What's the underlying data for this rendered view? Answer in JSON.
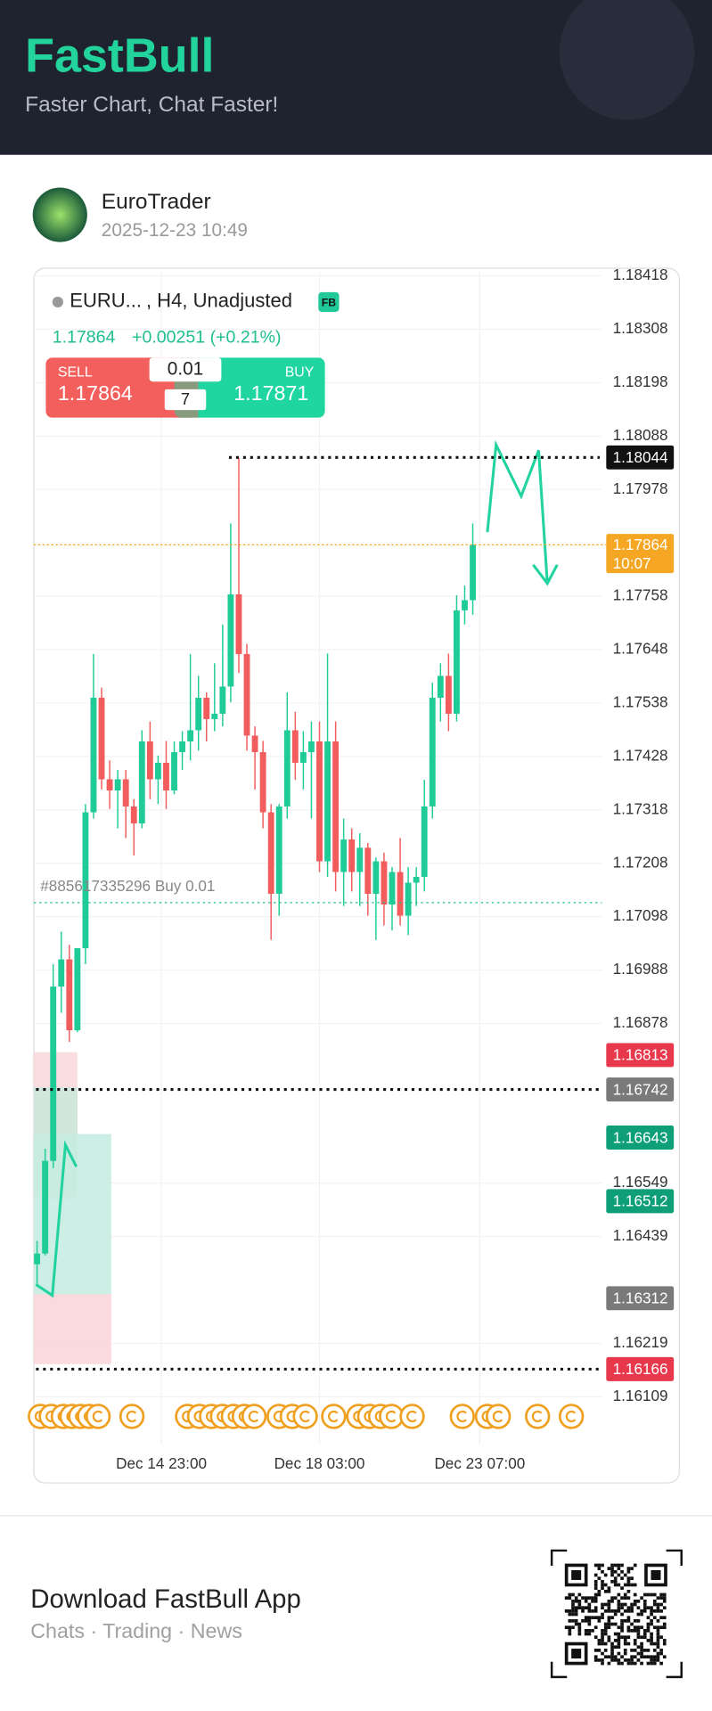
{
  "header": {
    "title": "FastBull",
    "subtitle": "Faster Chart, Chat Faster!"
  },
  "post": {
    "user": "EuroTrader",
    "time": "2025-12-23 10:49"
  },
  "chart_data": {
    "type": "candlestick",
    "symbol": "EURU...",
    "meta": ", H4, Unadjusted",
    "badge": "FB",
    "last": 1.17864,
    "change": "+0.00251 (+0.21%)",
    "trade": {
      "sell_label": "SELL",
      "sell": 1.17864,
      "lots": 0.01,
      "count": 7,
      "buy_label": "BUY",
      "buy": 1.17871
    },
    "ylim": [
      1.16109,
      1.18418
    ],
    "yticks": [
      1.18418,
      1.18308,
      1.18198,
      1.18088,
      1.17978,
      1.17758,
      1.17648,
      1.17538,
      1.17428,
      1.17318,
      1.17208,
      1.17098,
      1.16988,
      1.16878,
      1.16549,
      1.16439,
      1.16219,
      1.16109
    ],
    "x_labels": [
      "Dec 14 23:00",
      "Dec 18 03:00",
      "Dec 23 07:00"
    ],
    "up_color": "#1fcb97",
    "down_color": "#f25c5c",
    "candles": [
      [
        1.16382,
        1.1643,
        1.1634,
        1.16404
      ],
      [
        1.16404,
        1.1662,
        1.164,
        1.16595
      ],
      [
        1.16595,
        1.17,
        1.1658,
        1.16954
      ],
      [
        1.16954,
        1.17067,
        1.169,
        1.1701
      ],
      [
        1.1701,
        1.1704,
        1.1684,
        1.16864
      ],
      [
        1.16864,
        1.17033,
        1.1686,
        1.17033
      ],
      [
        1.17033,
        1.1733,
        1.17,
        1.17313
      ],
      [
        1.17313,
        1.17639,
        1.173,
        1.17549
      ],
      [
        1.17549,
        1.1757,
        1.1736,
        1.17381
      ],
      [
        1.17381,
        1.1742,
        1.1732,
        1.17358
      ],
      [
        1.17358,
        1.174,
        1.1728,
        1.17381
      ],
      [
        1.17381,
        1.174,
        1.1726,
        1.17325
      ],
      [
        1.17325,
        1.1734,
        1.17224,
        1.1729
      ],
      [
        1.1729,
        1.17482,
        1.1728,
        1.17459
      ],
      [
        1.17459,
        1.175,
        1.1734,
        1.17381
      ],
      [
        1.17381,
        1.1743,
        1.1733,
        1.17415
      ],
      [
        1.17415,
        1.1746,
        1.1732,
        1.17358
      ],
      [
        1.17358,
        1.17459,
        1.1735,
        1.17437
      ],
      [
        1.17437,
        1.1748,
        1.174,
        1.17459
      ],
      [
        1.17459,
        1.17639,
        1.1742,
        1.17482
      ],
      [
        1.17482,
        1.17594,
        1.1744,
        1.17549
      ],
      [
        1.17549,
        1.1756,
        1.17459,
        1.17505
      ],
      [
        1.17505,
        1.1762,
        1.1748,
        1.17516
      ],
      [
        1.17516,
        1.177,
        1.1749,
        1.17572
      ],
      [
        1.17572,
        1.17908,
        1.1754,
        1.17762
      ],
      [
        1.17762,
        1.18043,
        1.176,
        1.17639
      ],
      [
        1.17639,
        1.1766,
        1.1744,
        1.17471
      ],
      [
        1.17471,
        1.1749,
        1.1736,
        1.17437
      ],
      [
        1.17437,
        1.1746,
        1.1728,
        1.17313
      ],
      [
        1.17313,
        1.1733,
        1.1705,
        1.17145
      ],
      [
        1.17145,
        1.1733,
        1.171,
        1.17325
      ],
      [
        1.17325,
        1.1756,
        1.173,
        1.17482
      ],
      [
        1.17482,
        1.1752,
        1.1738,
        1.17415
      ],
      [
        1.17415,
        1.1748,
        1.1736,
        1.17437
      ],
      [
        1.17437,
        1.175,
        1.173,
        1.17459
      ],
      [
        1.17459,
        1.175,
        1.1719,
        1.17212
      ],
      [
        1.17212,
        1.1764,
        1.1718,
        1.17459
      ],
      [
        1.17459,
        1.175,
        1.1715,
        1.1719
      ],
      [
        1.1719,
        1.173,
        1.1712,
        1.17257
      ],
      [
        1.17257,
        1.1728,
        1.1715,
        1.1719
      ],
      [
        1.1719,
        1.1727,
        1.1712,
        1.1724
      ],
      [
        1.1724,
        1.1725,
        1.171,
        1.17145
      ],
      [
        1.17145,
        1.1722,
        1.1705,
        1.17212
      ],
      [
        1.17212,
        1.1723,
        1.1708,
        1.17123
      ],
      [
        1.17123,
        1.172,
        1.1707,
        1.1719
      ],
      [
        1.1719,
        1.1726,
        1.1708,
        1.171
      ],
      [
        1.171,
        1.172,
        1.1706,
        1.17168
      ],
      [
        1.17168,
        1.172,
        1.1712,
        1.1718
      ],
      [
        1.1718,
        1.1738,
        1.1715,
        1.17325
      ],
      [
        1.17325,
        1.1758,
        1.173,
        1.17549
      ],
      [
        1.17549,
        1.1762,
        1.175,
        1.17594
      ],
      [
        1.17594,
        1.1764,
        1.1748,
        1.17516
      ],
      [
        1.17516,
        1.1776,
        1.175,
        1.17729
      ],
      [
        1.17729,
        1.1778,
        1.177,
        1.1775
      ],
      [
        1.1775,
        1.17908,
        1.1772,
        1.17864
      ]
    ],
    "current": {
      "value": 1.17864,
      "time": "10:07",
      "color": "#f5a623"
    },
    "order": {
      "label": "#885617335296 Buy 0.01",
      "value": 1.17127
    },
    "price_tags": [
      {
        "value": 1.18044,
        "color": "#111111"
      },
      {
        "value": 1.16813,
        "color": "#e8384b"
      },
      {
        "value": 1.16742,
        "color": "#7a7a7a"
      },
      {
        "value": 1.16643,
        "color": "#0f9f78"
      },
      {
        "value": 1.16512,
        "color": "#0f9f78"
      },
      {
        "value": 1.16312,
        "color": "#7a7a7a"
      },
      {
        "value": 1.16166,
        "color": "#e8384b"
      }
    ]
  },
  "footer": {
    "title": "Download FastBull App",
    "subtitle": "Chats · Trading · News"
  }
}
